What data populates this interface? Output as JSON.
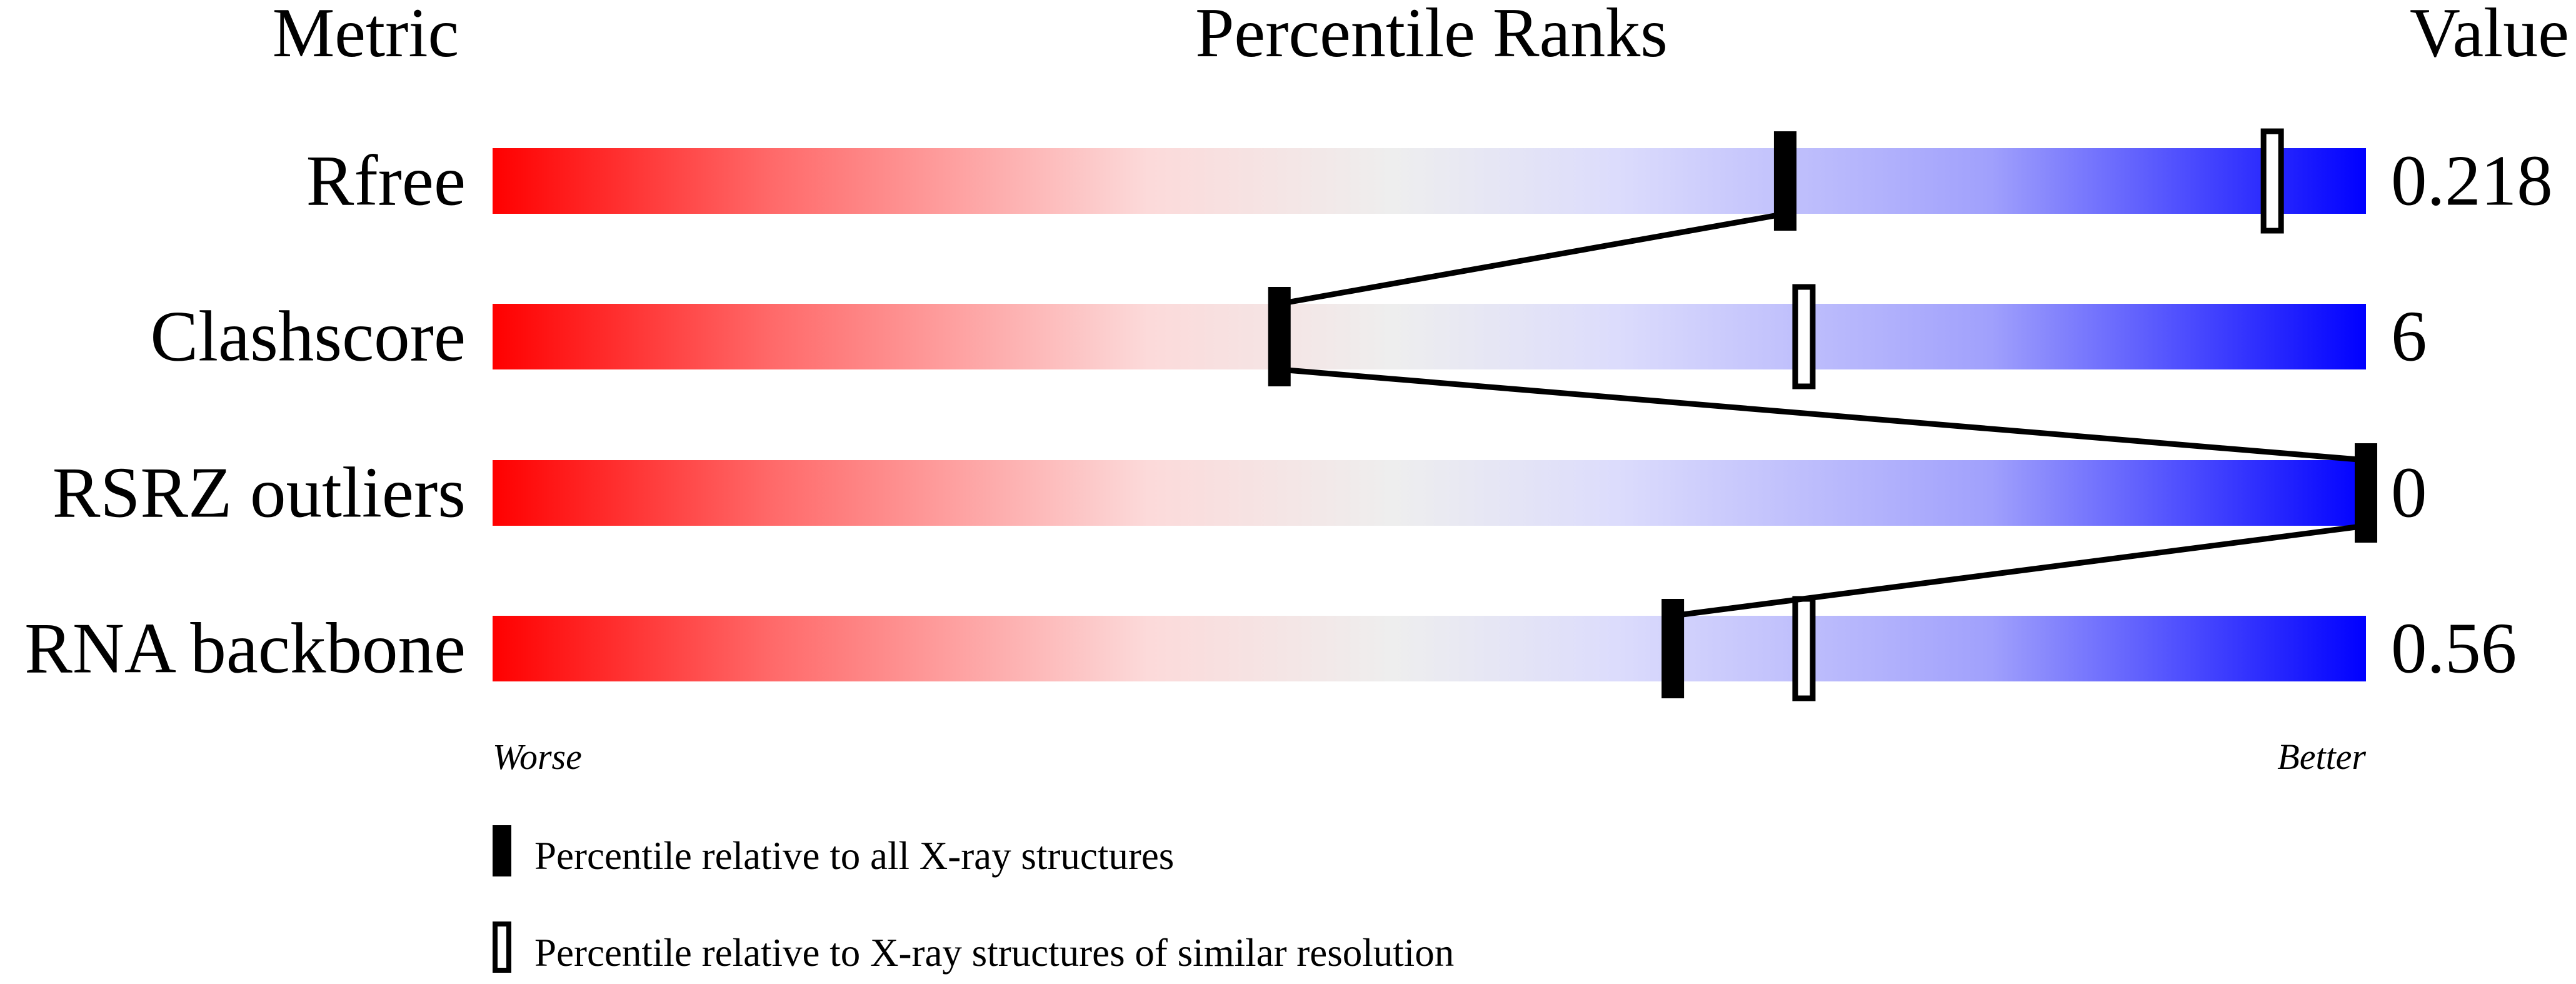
{
  "chart_data": {
    "type": "percentile-bar",
    "headers": {
      "metric": "Metric",
      "ranks": "Percentile Ranks",
      "value": "Value"
    },
    "xlim": [
      0,
      100
    ],
    "metrics": [
      {
        "name": "Rfree",
        "value": "0.218",
        "percentile_all": 69,
        "percentile_similar": 95
      },
      {
        "name": "Clashscore",
        "value": "6",
        "percentile_all": 42,
        "percentile_similar": 70
      },
      {
        "name": "RSRZ outliers",
        "value": "0",
        "percentile_all": 100,
        "percentile_similar": null
      },
      {
        "name": "RNA backbone",
        "value": "0.56",
        "percentile_all": 63,
        "percentile_similar": 70
      }
    ],
    "axis_labels": {
      "left": "Worse",
      "right": "Better"
    },
    "legend": {
      "all": "Percentile relative to all X-ray structures",
      "similar": "Percentile relative to X-ray structures of similar resolution"
    },
    "colors": {
      "worse": "#ff0000",
      "middle": "#eeeeee",
      "better": "#0000ff",
      "marker": "#000000"
    }
  }
}
